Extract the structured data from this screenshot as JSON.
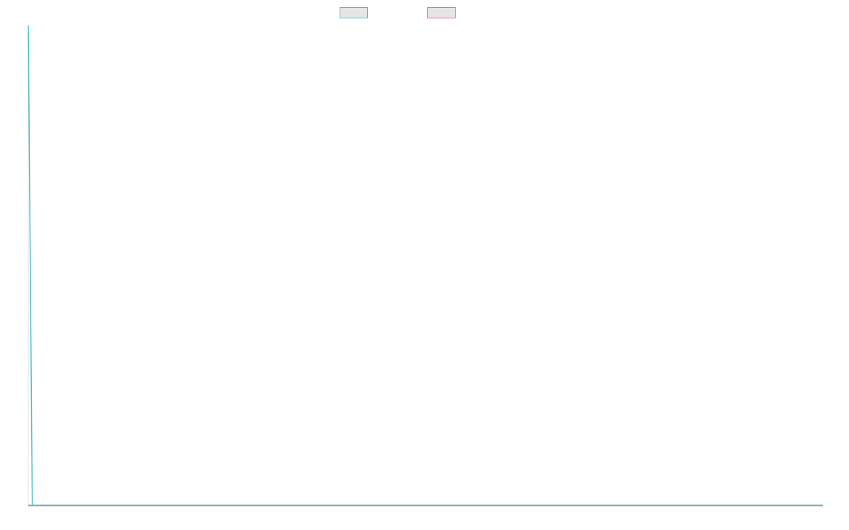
{
  "chart_data": {
    "type": "line",
    "title": "",
    "xlabel": "",
    "ylabel": "",
    "grid": false,
    "legend": "top-center",
    "series": [
      {
        "color": "#4bc0c0",
        "values": [
          1,
          0,
          0,
          0,
          0,
          0,
          0,
          0,
          0,
          0,
          0,
          0,
          0,
          0,
          0,
          0,
          0,
          0,
          0,
          0,
          0,
          0,
          0,
          0,
          0,
          0,
          0,
          0,
          0,
          0,
          0,
          0,
          0,
          0,
          0,
          0,
          0,
          0,
          0,
          0,
          0,
          0,
          0,
          0,
          0,
          0,
          0,
          0,
          0,
          0,
          0,
          0,
          0,
          0,
          0,
          0,
          0,
          0,
          0,
          0,
          0,
          0,
          0,
          0,
          0,
          0,
          0,
          0,
          0,
          0,
          0,
          0,
          0,
          0,
          0,
          0,
          0,
          0,
          0,
          0,
          0,
          0,
          0,
          0,
          0,
          0,
          0,
          0,
          0,
          0,
          0,
          0,
          0,
          0,
          0,
          0,
          0,
          0,
          0,
          0,
          0,
          0,
          0,
          0,
          0,
          0,
          0,
          0,
          0,
          0,
          0,
          0,
          0,
          0,
          0,
          0,
          0,
          0,
          0,
          0,
          0,
          0,
          0,
          0,
          0,
          0,
          0,
          0,
          0,
          0,
          0,
          0,
          0,
          0,
          0,
          0,
          0,
          0,
          0,
          0,
          0,
          0,
          0,
          0,
          0,
          0,
          0,
          0,
          0,
          0,
          0,
          0,
          0,
          0,
          0,
          0,
          0,
          0,
          0,
          0,
          0,
          0,
          0,
          0,
          0,
          0,
          0,
          0,
          0,
          0,
          0,
          0,
          0,
          0,
          0,
          0,
          0,
          0,
          0,
          0,
          0,
          0,
          0,
          0,
          0,
          0,
          0,
          0,
          0,
          0,
          0,
          0,
          0,
          0,
          0,
          0,
          0,
          0,
          0,
          0
        ]
      },
      {
        "color": "#ff6384",
        "values": [
          0,
          0,
          0,
          0,
          0,
          0,
          0,
          0,
          0,
          0,
          0,
          0,
          0,
          0,
          0,
          0,
          0,
          0,
          0,
          0,
          0,
          0,
          0,
          0,
          0,
          0,
          0,
          0,
          0,
          0,
          0,
          0,
          0,
          0,
          0,
          0,
          0,
          0,
          0,
          0,
          0,
          0,
          0,
          0,
          0,
          0,
          0,
          0,
          0,
          0,
          0,
          0,
          0,
          0,
          0,
          0,
          0,
          0,
          0,
          0,
          0,
          0,
          0,
          0,
          0,
          0,
          0,
          0,
          0,
          0,
          0,
          0,
          0,
          0,
          0,
          0,
          0,
          0,
          0,
          0,
          0,
          0,
          0,
          0,
          0,
          0,
          0,
          0,
          0,
          0,
          0,
          0,
          0,
          0,
          0,
          0,
          0,
          0,
          0,
          0,
          0,
          0,
          0,
          0,
          0,
          0,
          0,
          0,
          0,
          0,
          0,
          0,
          0,
          0,
          0,
          0,
          0,
          0,
          0,
          0,
          0,
          0,
          0,
          0,
          0,
          0,
          0,
          0,
          0,
          0,
          0,
          0,
          0,
          0,
          0,
          0,
          0,
          0,
          0,
          0,
          0,
          0,
          0,
          0,
          0,
          0,
          0,
          0,
          0,
          0,
          0,
          0,
          0,
          0,
          0,
          0,
          0,
          0,
          0,
          0,
          0,
          0,
          0,
          0,
          0,
          0,
          0,
          0,
          0,
          0,
          0,
          0,
          0,
          0,
          0,
          0,
          0,
          0,
          0,
          0,
          0,
          0,
          0,
          0,
          0,
          0,
          0,
          0,
          0,
          0,
          0,
          0,
          0,
          0,
          0,
          0,
          0,
          0,
          0,
          0
        ]
      }
    ]
  }
}
